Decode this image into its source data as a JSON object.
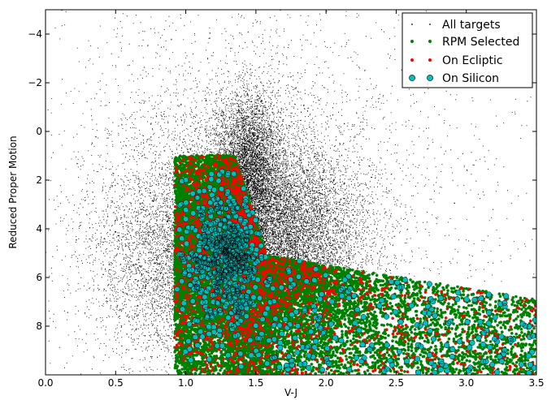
{
  "colors": {
    "all_targets": "#000000",
    "rpm_selected": "#008000",
    "on_ecliptic": "#ff0000",
    "on_silicon": "#00bfbf"
  },
  "chart_data": {
    "type": "scatter",
    "xlabel": "V-J",
    "ylabel": "Reduced Proper Motion",
    "xlim": [
      0.0,
      3.5
    ],
    "ylim": [
      10.0,
      -5.0
    ],
    "y_inverted": true,
    "grid": false,
    "legend_position": "top-right",
    "x_ticks": [
      "0.0",
      "0.5",
      "1.0",
      "1.5",
      "2.0",
      "2.5",
      "3.0",
      "3.5"
    ],
    "y_ticks": [
      "−4",
      "−2",
      "0",
      "2",
      "4",
      "6",
      "8"
    ],
    "x_tick_values": [
      0.0,
      0.5,
      1.0,
      1.5,
      2.0,
      2.5,
      3.0,
      3.5
    ],
    "y_tick_values": [
      -4,
      -2,
      0,
      2,
      4,
      6,
      8
    ],
    "selection_boundary": {
      "points": [
        [
          0.92,
          10.0
        ],
        [
          0.92,
          0.9
        ],
        [
          1.35,
          1.0
        ],
        [
          1.58,
          5.1
        ],
        [
          3.5,
          6.9
        ]
      ]
    },
    "series": [
      {
        "name": "All targets",
        "marker": "dot",
        "color": "#000000",
        "description": "Very dense scatter (tens of thousands of stars) spanning V-J 0.0-3.5 and RPM -5 to 10, concentrated around V-J 1.0-2.2, RPM -1 to 9, densest near V-J 1.6, RPM 4.5"
      },
      {
        "name": "RPM Selected",
        "marker": "small-circle",
        "color": "#008000",
        "description": "Stars below the selection boundary: V-J 0.9-3.5, RPM 1 to 10"
      },
      {
        "name": "On Ecliptic",
        "marker": "small-circle",
        "color": "#ff0000",
        "description": "Subset of RPM-selected stars scattered through the selected region"
      },
      {
        "name": "On Silicon",
        "marker": "circle",
        "color": "#00bfbf",
        "description": "Subset of RPM-selected stars, densest near V-J 1.2-1.4, RPM 4-6.5, and thinning along the lower branch to V-J 3.5"
      }
    ]
  },
  "legend": {
    "items": [
      {
        "label": "All targets",
        "color": "#000000",
        "marker": "dot"
      },
      {
        "label": "RPM Selected",
        "color": "#008000",
        "marker": "small-circle"
      },
      {
        "label": "On Ecliptic",
        "color": "#ff0000",
        "marker": "small-circle"
      },
      {
        "label": "On Silicon",
        "color": "#00bfbf",
        "marker": "circle"
      }
    ]
  }
}
